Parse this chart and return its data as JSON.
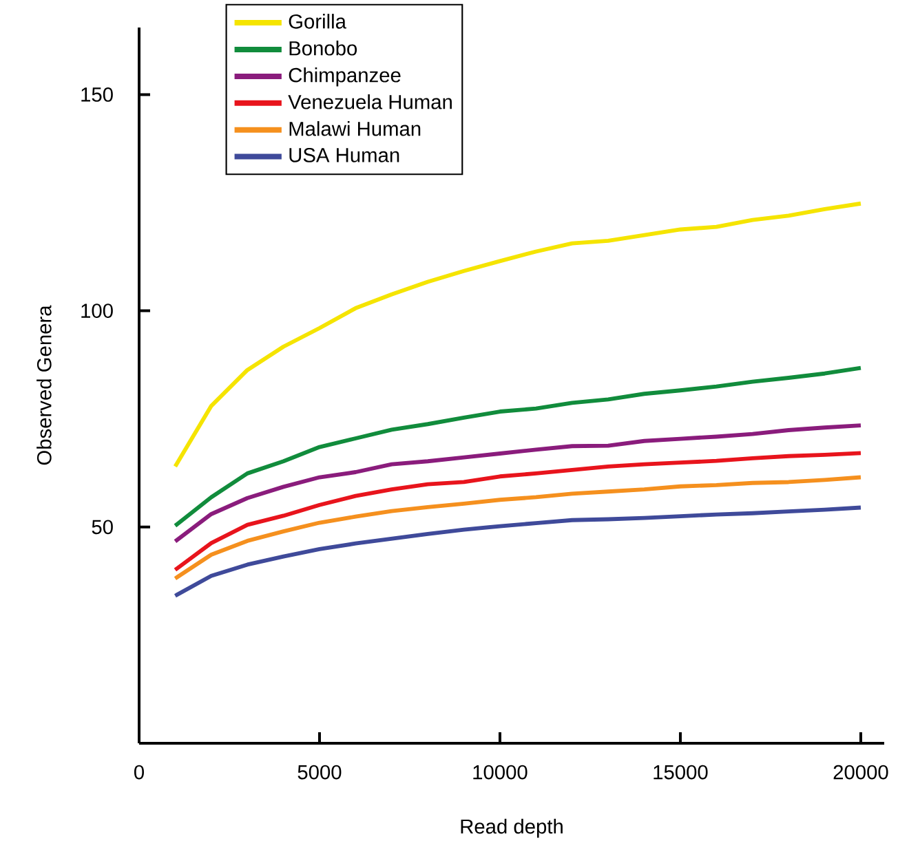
{
  "chart_data": {
    "type": "line",
    "xlabel": "Read depth",
    "ylabel": "Observed Genera",
    "x": [
      1000,
      2000,
      3000,
      4000,
      5000,
      6000,
      7000,
      8000,
      9000,
      10000,
      11000,
      12000,
      13000,
      14000,
      15000,
      16000,
      17000,
      18000,
      19000,
      20000
    ],
    "series": [
      {
        "name": "Gorilla",
        "color": "#f5e400",
        "values": [
          64,
          78,
          86.3,
          91.7,
          96,
          100.6,
          103.8,
          106.7,
          109.2,
          111.5,
          113.7,
          115.6,
          116.2,
          117.5,
          118.8,
          119.4,
          121,
          122,
          123.5,
          124.8
        ]
      },
      {
        "name": "Bonobo",
        "color": "#118c3c",
        "values": [
          50.3,
          56.9,
          62.4,
          65.2,
          68.5,
          70.5,
          72.5,
          73.8,
          75.3,
          76.7,
          77.4,
          78.7,
          79.5,
          80.8,
          81.6,
          82.5,
          83.6,
          84.5,
          85.5,
          86.8
        ]
      },
      {
        "name": "Chimpanzee",
        "color": "#8a1c7c",
        "values": [
          46.7,
          53,
          56.7,
          59.3,
          61.5,
          62.7,
          64.5,
          65.2,
          66.1,
          67,
          67.9,
          68.7,
          68.8,
          69.9,
          70.4,
          70.9,
          71.5,
          72.4,
          73,
          73.5
        ]
      },
      {
        "name": "Venezuela Human",
        "color": "#e8141c",
        "values": [
          40.1,
          46.3,
          50.5,
          52.6,
          55.1,
          57.2,
          58.7,
          59.9,
          60.4,
          61.7,
          62.4,
          63.2,
          64,
          64.5,
          64.9,
          65.3,
          65.9,
          66.4,
          66.7,
          67.1
        ]
      },
      {
        "name": "Malawi Human",
        "color": "#f5901e",
        "values": [
          38.1,
          43.6,
          46.8,
          49,
          51,
          52.4,
          53.7,
          54.6,
          55.4,
          56.3,
          56.9,
          57.7,
          58.2,
          58.7,
          59.4,
          59.7,
          60.2,
          60.4,
          60.9,
          61.5
        ]
      },
      {
        "name": "USA Human",
        "color": "#3f4a9a",
        "values": [
          34.1,
          38.7,
          41.3,
          43.2,
          44.9,
          46.2,
          47.3,
          48.4,
          49.4,
          50.2,
          50.9,
          51.6,
          51.8,
          52.1,
          52.5,
          52.9,
          53.2,
          53.6,
          54,
          54.5
        ]
      }
    ],
    "xlim": [
      0,
      20650
    ],
    "ylim": [
      0,
      165.5
    ],
    "xticks": [
      0,
      5000,
      10000,
      15000,
      20000
    ],
    "yticks": [
      50,
      100,
      150
    ],
    "legend": "top left"
  }
}
